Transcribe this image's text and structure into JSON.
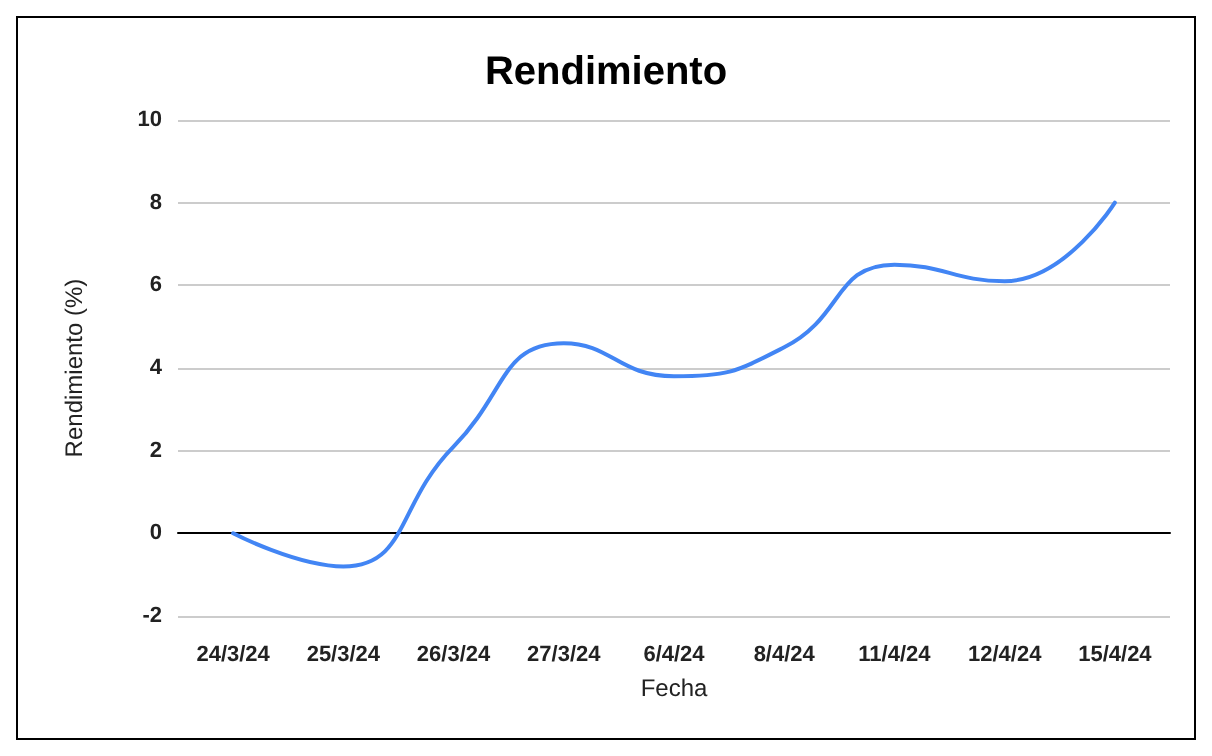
{
  "chart_data": {
    "type": "line",
    "title": "Rendimiento",
    "xlabel": "Fecha",
    "ylabel": "Rendimiento (%)",
    "categories": [
      "24/3/24",
      "25/3/24",
      "26/3/24",
      "27/3/24",
      "6/4/24",
      "8/4/24",
      "11/4/24",
      "12/4/24",
      "15/4/24"
    ],
    "series": [
      {
        "color": "#4285f4",
        "values": [
          0,
          -0.8,
          2.1,
          4.6,
          3.8,
          4.5,
          6.5,
          6.1,
          8.0
        ]
      }
    ],
    "ylim": [
      -2,
      10
    ],
    "yticks": [
      -2,
      0,
      2,
      4,
      6,
      8,
      10
    ],
    "grid": "y",
    "marker": "none",
    "line_style": "solid"
  }
}
